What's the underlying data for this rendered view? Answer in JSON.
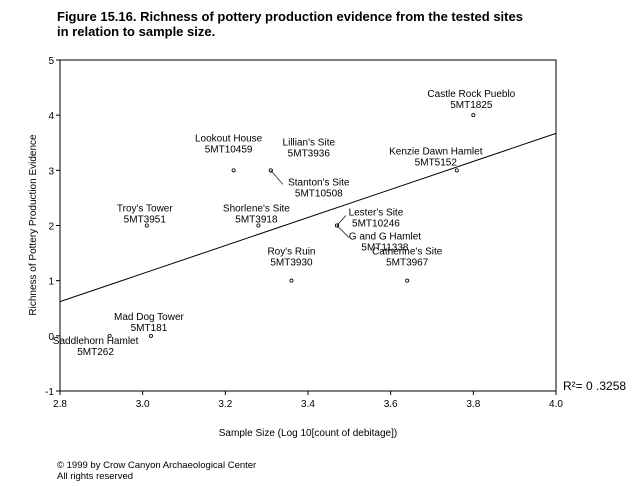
{
  "title_lines": [
    "Figure 15.16.  Richness of pottery production evidence from the tested sites",
    "in relation to sample size."
  ],
  "copyright_lines": [
    "© 1999 by Crow Canyon Archaeological Center",
    "All rights reserved"
  ],
  "chart_data": {
    "type": "scatter",
    "title": "",
    "xlabel": "Sample Size (Log 10[count of debitage])",
    "ylabel": "Richness of Pottery Production Evidence",
    "xlim": [
      2.8,
      4.0
    ],
    "ylim": [
      -1,
      5
    ],
    "xticks": [
      "2.8",
      "3.0",
      "3.2",
      "3.4",
      "3.6",
      "3.8",
      "4.0"
    ],
    "yticks": [
      "-1",
      "0",
      "1",
      "2",
      "3",
      "4",
      "5"
    ],
    "grid": false,
    "legend": "none",
    "points": [
      {
        "name": "Castle Rock Pueblo",
        "id": "5MT1825",
        "x": 3.8,
        "y": 4
      },
      {
        "name": "Lookout House",
        "id": "5MT10459",
        "x": 3.22,
        "y": 3
      },
      {
        "name": "Lillian's Site",
        "id": "5MT3936",
        "x": 3.31,
        "y": 3
      },
      {
        "name": "Stanton's Site",
        "id": "5MT10508",
        "x": 3.31,
        "y": 3
      },
      {
        "name": "Kenzie Dawn Hamlet",
        "id": "5MT5152",
        "x": 3.76,
        "y": 3
      },
      {
        "name": "Troy's Tower",
        "id": "5MT3951",
        "x": 3.01,
        "y": 2
      },
      {
        "name": "Shorlene's Site",
        "id": "5MT3918",
        "x": 3.28,
        "y": 2
      },
      {
        "name": "Lester's Site",
        "id": "5MT10246",
        "x": 3.47,
        "y": 2
      },
      {
        "name": "G and G Hamlet",
        "id": "5MT11338",
        "x": 3.47,
        "y": 2
      },
      {
        "name": "Roy's Ruin",
        "id": "5MT3930",
        "x": 3.36,
        "y": 1
      },
      {
        "name": "Catherine's Site",
        "id": "5MT3967",
        "x": 3.64,
        "y": 1
      },
      {
        "name": "Mad Dog Tower",
        "id": "5MT181",
        "x": 3.02,
        "y": 0
      },
      {
        "name": "Saddlehorn Hamlet",
        "id": "5MT262",
        "x": 2.92,
        "y": 0
      }
    ],
    "regression_line": {
      "x": [
        2.8,
        4.0
      ],
      "y": [
        0.62,
        3.67
      ]
    },
    "r_squared_label": "R²= 0 .3258"
  }
}
